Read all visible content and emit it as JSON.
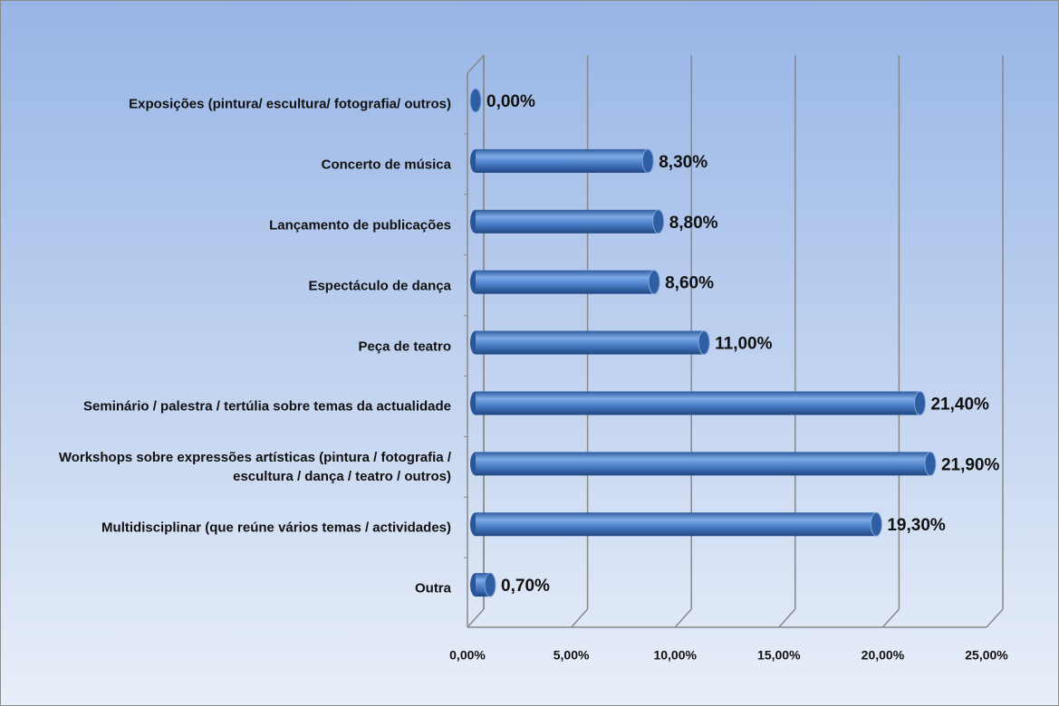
{
  "chart_data": {
    "type": "bar",
    "orientation": "horizontal",
    "style": "3d-cylinder",
    "categories": [
      "Exposições (pintura/ escultura/ fotografia/ outros)",
      "Concerto de música",
      "Lançamento de publicações",
      "Espectáculo de dança",
      "Peça de teatro",
      "Seminário / palestra / tertúlia sobre temas da actualidade",
      "Workshops sobre expressões artísticas (pintura / fotografia / escultura / dança / teatro / outros)",
      "Multidisciplinar (que reúne vários temas / actividades)",
      "Outra"
    ],
    "values": [
      0,
      8.3,
      8.8,
      8.6,
      11,
      21.4,
      21.9,
      19.3,
      0.7
    ],
    "value_labels": [
      "0,00%",
      "8,30%",
      "8,80%",
      "8,60%",
      "11,00%",
      "21,40%",
      "21,90%",
      "19,30%",
      "0,70%"
    ],
    "color": "#4a7fc8",
    "xlim": [
      0,
      25
    ],
    "xticks": [
      {
        "value": 0,
        "label": "0,00%"
      },
      {
        "value": 5,
        "label": "5,00%"
      },
      {
        "value": 10,
        "label": "10,00%"
      },
      {
        "value": 15,
        "label": "15,00%"
      },
      {
        "value": 20,
        "label": "20,00%"
      },
      {
        "value": 25,
        "label": "25,00%"
      }
    ],
    "grid": true
  }
}
